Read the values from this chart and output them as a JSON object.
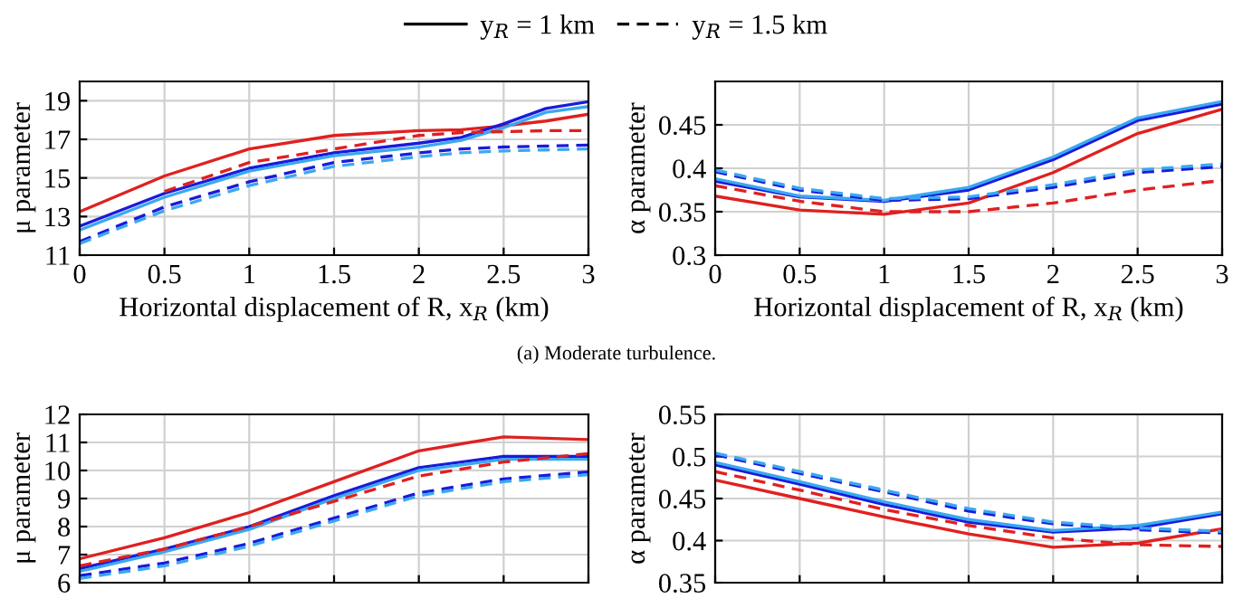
{
  "chart_data": [
    {
      "type": "line",
      "xlabel": "Horizontal displacement of R, x$_{R}$ (km)",
      "ylabel": "μ parameter",
      "xlim": [
        0,
        3
      ],
      "xticks": [
        0,
        0.5,
        1,
        1.5,
        2,
        2.5,
        3
      ],
      "ylim": [
        11,
        20
      ],
      "yticks": [
        11,
        13,
        15,
        17,
        19
      ],
      "grid": true,
      "x": [
        0,
        0.5,
        1,
        1.5,
        2,
        2.25,
        2.5,
        2.75,
        3
      ],
      "annotations": [
        "y$_{R}$ = 1 km",
        "y$_{R}$ = 1.5 km",
        "(a) Moderate turbulence."
      ],
      "series": [
        {
          "color": "#e02020",
          "line_style": "solid",
          "values": [
            13.25,
            15.1,
            16.5,
            17.2,
            17.45,
            17.5,
            17.7,
            17.95,
            18.3
          ]
        },
        {
          "color": "#1a1adc",
          "line_style": "solid",
          "values": [
            12.5,
            14.2,
            15.5,
            16.3,
            16.8,
            17.1,
            17.8,
            18.6,
            18.95
          ]
        },
        {
          "color": "#3aa8f0",
          "line_style": "solid",
          "values": [
            12.3,
            14.0,
            15.35,
            16.15,
            16.6,
            16.95,
            17.6,
            18.4,
            18.7
          ]
        },
        {
          "color": "#e02020",
          "line_style": "dashed",
          "values": [
            null,
            14.3,
            15.8,
            16.5,
            17.2,
            17.35,
            17.4,
            17.45,
            17.45
          ]
        },
        {
          "color": "#1a1adc",
          "line_style": "dashed",
          "values": [
            11.7,
            13.5,
            14.8,
            15.8,
            16.3,
            16.5,
            16.6,
            16.65,
            16.7
          ]
        },
        {
          "color": "#3aa8f0",
          "line_style": "dashed",
          "values": [
            11.6,
            13.3,
            14.6,
            15.6,
            16.1,
            16.3,
            16.4,
            16.45,
            16.5
          ]
        }
      ]
    },
    {
      "type": "line",
      "xlabel": "Horizontal displacement of R, x$_{R}$ (km)",
      "ylabel": "α parameter",
      "xlim": [
        0,
        3
      ],
      "xticks": [
        0,
        0.5,
        1,
        1.5,
        2,
        2.5,
        3
      ],
      "ylim": [
        0.3,
        0.5
      ],
      "yticks": [
        0.3,
        0.35,
        0.4,
        0.45
      ],
      "grid": true,
      "x": [
        0,
        0.5,
        1,
        1.5,
        2,
        2.5,
        3
      ],
      "series": [
        {
          "color": "#e02020",
          "line_style": "solid",
          "values": [
            0.368,
            0.352,
            0.347,
            0.36,
            0.395,
            0.44,
            0.468
          ]
        },
        {
          "color": "#1a1adc",
          "line_style": "solid",
          "values": [
            0.385,
            0.367,
            0.362,
            0.375,
            0.41,
            0.455,
            0.474
          ]
        },
        {
          "color": "#3aa8f0",
          "line_style": "solid",
          "values": [
            0.388,
            0.368,
            0.363,
            0.378,
            0.413,
            0.458,
            0.477
          ]
        },
        {
          "color": "#e02020",
          "line_style": "dashed",
          "values": [
            0.38,
            0.362,
            0.35,
            0.35,
            0.36,
            0.375,
            0.386
          ]
        },
        {
          "color": "#1a1adc",
          "line_style": "dashed",
          "values": [
            0.396,
            0.375,
            0.363,
            0.365,
            0.378,
            0.395,
            0.402
          ]
        },
        {
          "color": "#3aa8f0",
          "line_style": "dashed",
          "values": [
            0.398,
            0.377,
            0.365,
            0.367,
            0.381,
            0.398,
            0.405
          ]
        }
      ]
    },
    {
      "type": "line",
      "ylabel": "μ parameter",
      "xlim": [
        0,
        3
      ],
      "xticks": [
        {
          "value": 0,
          "label": null
        },
        {
          "value": 0.5,
          "label": null
        },
        {
          "value": 1,
          "label": null
        },
        {
          "value": 1.5,
          "label": null
        },
        {
          "value": 2,
          "label": null
        },
        {
          "value": 2.5,
          "label": null
        },
        {
          "value": 3,
          "label": null
        }
      ],
      "ylim": [
        6,
        12
      ],
      "yticks": [
        6,
        7,
        8,
        9,
        10,
        11,
        12
      ],
      "grid": true,
      "tick_labels": "y",
      "x": [
        0,
        0.5,
        1,
        1.5,
        2,
        2.5,
        3
      ],
      "series": [
        {
          "color": "#e02020",
          "line_style": "solid",
          "values": [
            6.85,
            7.6,
            8.5,
            9.6,
            10.7,
            11.2,
            11.1
          ]
        },
        {
          "color": "#1a1adc",
          "line_style": "solid",
          "values": [
            6.5,
            7.2,
            8.0,
            9.1,
            10.1,
            10.5,
            10.5
          ]
        },
        {
          "color": "#3aa8f0",
          "line_style": "solid",
          "values": [
            6.4,
            7.1,
            7.9,
            9.0,
            10.0,
            10.4,
            10.4
          ]
        },
        {
          "color": "#e02020",
          "line_style": "dashed",
          "values": [
            6.6,
            7.2,
            8.0,
            8.9,
            9.8,
            10.3,
            10.6
          ]
        },
        {
          "color": "#1a1adc",
          "line_style": "dashed",
          "values": [
            6.25,
            6.7,
            7.4,
            8.3,
            9.2,
            9.7,
            9.95
          ]
        },
        {
          "color": "#3aa8f0",
          "line_style": "dashed",
          "values": [
            6.15,
            6.6,
            7.3,
            8.2,
            9.1,
            9.6,
            9.85
          ]
        }
      ]
    },
    {
      "type": "line",
      "ylabel": "α parameter",
      "xlim": [
        0,
        3
      ],
      "xticks": [
        {
          "value": 0,
          "label": null
        },
        {
          "value": 0.5,
          "label": null
        },
        {
          "value": 1,
          "label": null
        },
        {
          "value": 1.5,
          "label": null
        },
        {
          "value": 2,
          "label": null
        },
        {
          "value": 2.5,
          "label": null
        },
        {
          "value": 3,
          "label": null
        }
      ],
      "ylim": [
        0.35,
        0.55
      ],
      "yticks": [
        0.35,
        0.4,
        0.45,
        0.5,
        0.55
      ],
      "grid": true,
      "tick_labels": "y",
      "x": [
        0,
        0.5,
        1,
        1.5,
        2,
        2.5,
        3
      ],
      "series": [
        {
          "color": "#e02020",
          "line_style": "solid",
          "values": [
            0.472,
            0.45,
            0.428,
            0.408,
            0.392,
            0.397,
            0.414
          ]
        },
        {
          "color": "#1a1adc",
          "line_style": "solid",
          "values": [
            0.49,
            0.467,
            0.443,
            0.422,
            0.41,
            0.415,
            0.432
          ]
        },
        {
          "color": "#3aa8f0",
          "line_style": "solid",
          "values": [
            0.493,
            0.47,
            0.446,
            0.425,
            0.412,
            0.418,
            0.434
          ]
        },
        {
          "color": "#e02020",
          "line_style": "dashed",
          "values": [
            0.482,
            0.46,
            0.437,
            0.418,
            0.403,
            0.395,
            0.393
          ]
        },
        {
          "color": "#1a1adc",
          "line_style": "dashed",
          "values": [
            0.502,
            0.48,
            0.458,
            0.435,
            0.42,
            0.413,
            0.409
          ]
        },
        {
          "color": "#3aa8f0",
          "line_style": "dashed",
          "values": [
            0.504,
            0.482,
            0.46,
            0.438,
            0.422,
            0.415,
            0.411
          ]
        }
      ]
    }
  ]
}
